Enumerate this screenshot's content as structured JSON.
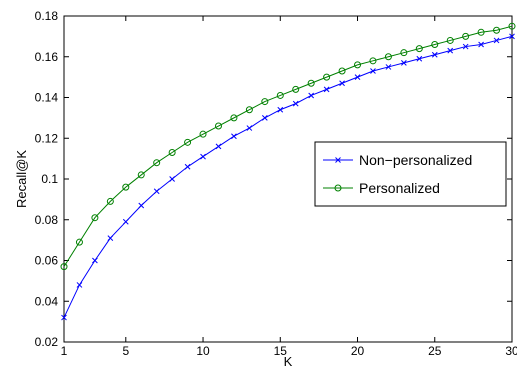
{
  "chart_data": {
    "type": "line",
    "xlabel": "K",
    "ylabel": "Recall@K",
    "xlim": [
      1,
      30
    ],
    "ylim": [
      0.02,
      0.18
    ],
    "x_ticks": [
      1,
      5,
      10,
      15,
      20,
      25,
      30
    ],
    "x_tick_labels": [
      "1",
      "5",
      "10",
      "15",
      "20",
      "25",
      "30"
    ],
    "y_ticks": [
      0.02,
      0.04,
      0.06,
      0.08,
      0.1,
      0.12,
      0.14,
      0.16,
      0.18
    ],
    "y_tick_labels": [
      "0.02",
      "0.04",
      "0.06",
      "0.08",
      "0.1",
      "0.12",
      "0.14",
      "0.16",
      "0.18"
    ],
    "grid": false,
    "legend_position": "right",
    "x": [
      1,
      2,
      3,
      4,
      5,
      6,
      7,
      8,
      9,
      10,
      11,
      12,
      13,
      14,
      15,
      16,
      17,
      18,
      19,
      20,
      21,
      22,
      23,
      24,
      25,
      26,
      27,
      28,
      29,
      30
    ],
    "series": [
      {
        "name": "Non−personalized",
        "color": "#0000ff",
        "marker": "x",
        "values": [
          0.032,
          0.048,
          0.06,
          0.071,
          0.079,
          0.087,
          0.094,
          0.1,
          0.106,
          0.111,
          0.116,
          0.121,
          0.125,
          0.13,
          0.134,
          0.137,
          0.141,
          0.144,
          0.147,
          0.15,
          0.153,
          0.155,
          0.157,
          0.159,
          0.161,
          0.163,
          0.165,
          0.166,
          0.168,
          0.17
        ]
      },
      {
        "name": "Personalized",
        "color": "#008000",
        "marker": "o",
        "values": [
          0.057,
          0.069,
          0.081,
          0.089,
          0.096,
          0.102,
          0.108,
          0.113,
          0.118,
          0.122,
          0.126,
          0.13,
          0.134,
          0.138,
          0.141,
          0.144,
          0.147,
          0.15,
          0.153,
          0.156,
          0.158,
          0.16,
          0.162,
          0.164,
          0.166,
          0.168,
          0.17,
          0.172,
          0.173,
          0.175
        ]
      }
    ]
  }
}
